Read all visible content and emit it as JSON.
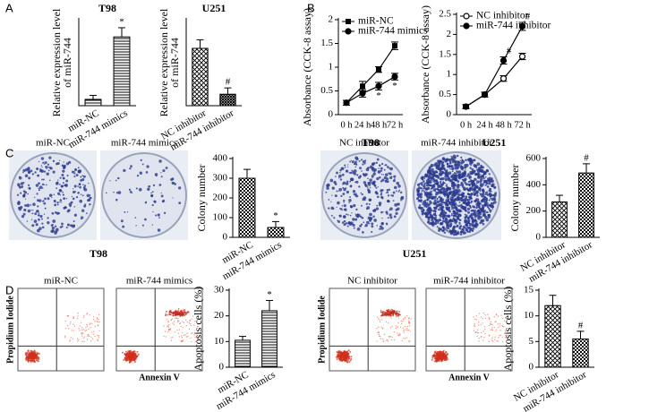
{
  "figure": {
    "panels": [
      "A",
      "B",
      "C",
      "D"
    ],
    "colony": [
      {
        "cell_line": "T98",
        "labels": [
          "miR-NC",
          "miR-744 mimics"
        ]
      },
      {
        "cell_line": "U251",
        "labels": [
          "NC inhibitor",
          "miR-744 inhibitor"
        ]
      }
    ],
    "flow": {
      "labels": [
        [
          "miR-NC",
          "miR-744 mimics"
        ],
        [
          "NC inhibitor",
          "miR-744 inhibitor"
        ]
      ],
      "ylabel": "Propidium Iodide",
      "xlabel": "Annexin V"
    }
  },
  "chart_data": [
    {
      "type": "bar",
      "title": "T98",
      "ylabel": [
        "Relative expression level",
        "of miR-744"
      ],
      "categories": [
        "miR-NC",
        "miR-744 mimics"
      ],
      "values": [
        1.1,
        12
      ],
      "errors": [
        0.7,
        1.6
      ],
      "patterns": [
        "hlines",
        "hlines"
      ],
      "ylim": [
        0,
        15
      ],
      "annotations": [
        {
          "category": "miR-744 mimics",
          "text": "*"
        }
      ]
    },
    {
      "type": "bar",
      "title": "U251",
      "ylabel": [
        "Relative expression level",
        "of miR-744"
      ],
      "categories": [
        "NC inhibitor",
        "miR-744 inhibitor"
      ],
      "values": [
        10,
        2
      ],
      "errors": [
        1.5,
        1.1
      ],
      "patterns": [
        "crosshatch",
        "dense"
      ],
      "ylim": [
        0,
        15
      ],
      "annotations": [
        {
          "category": "miR-744 inhibitor",
          "text": "#"
        }
      ]
    },
    {
      "type": "line",
      "title": "T98",
      "ylabel": [
        "Absorbance (CCK-8 assay)"
      ],
      "categories": [
        "0 h",
        "24 h",
        "48 h",
        "72 h"
      ],
      "ylim": [
        0,
        2
      ],
      "yticks": [
        0,
        0.5,
        1,
        1.5,
        2
      ],
      "series": [
        {
          "name": "miR-NC",
          "color": "#000000",
          "marker": "square",
          "values": [
            0.25,
            0.6,
            0.95,
            1.45
          ],
          "errors": [
            0.05,
            0.1,
            0.06,
            0.08
          ]
        },
        {
          "name": "miR-744 mimics",
          "color": "#000000",
          "marker": "circle",
          "values": [
            0.25,
            0.45,
            0.6,
            0.8
          ],
          "errors": [
            0.05,
            0.08,
            0.08,
            0.07
          ]
        }
      ],
      "annotations": [
        {
          "series": "miR-744 mimics",
          "category": "48 h",
          "text": "*",
          "position": "below"
        },
        {
          "series": "miR-744 mimics",
          "category": "72 h",
          "text": "*",
          "position": "below"
        }
      ]
    },
    {
      "type": "line",
      "title": "U251",
      "ylabel": [
        "Absorbance (CCK-8 assay)"
      ],
      "categories": [
        "0 h",
        "24 h",
        "48 h",
        "72 h"
      ],
      "ylim": [
        0,
        2.5
      ],
      "yticks": [
        0,
        0.5,
        1,
        1.5,
        2,
        2.5
      ],
      "series": [
        {
          "name": "NC inhibitor",
          "color": "#000000",
          "marker": "circle-open",
          "values": [
            0.2,
            0.5,
            0.9,
            1.45
          ],
          "errors": [
            0.05,
            0.06,
            0.07,
            0.08
          ]
        },
        {
          "name": "miR-744 inhibitor",
          "color": "#000000",
          "marker": "circle",
          "values": [
            0.2,
            0.5,
            1.35,
            2.2
          ],
          "errors": [
            0.05,
            0.06,
            0.09,
            0.1
          ]
        }
      ],
      "annotations": [
        {
          "series": "miR-744 inhibitor",
          "category": "48 h",
          "text": "#",
          "position": "above"
        },
        {
          "series": "miR-744 inhibitor",
          "category": "72 h",
          "text": "#",
          "position": "above"
        }
      ]
    },
    {
      "type": "bar",
      "ylabel": [
        "Colony number"
      ],
      "categories": [
        "miR-NC",
        "miR-744 mimics"
      ],
      "values": [
        300,
        50
      ],
      "errors": [
        45,
        30
      ],
      "patterns": [
        "checker",
        "checker"
      ],
      "ylim": [
        0,
        400
      ],
      "yticks": [
        0,
        100,
        200,
        300,
        400
      ],
      "annotations": [
        {
          "category": "miR-744 mimics",
          "text": "*"
        }
      ]
    },
    {
      "type": "bar",
      "ylabel": [
        "Colony number"
      ],
      "categories": [
        "NC inhibitor",
        "miR-744 inhibitor"
      ],
      "values": [
        270,
        490
      ],
      "errors": [
        50,
        70
      ],
      "patterns": [
        "crosshatch",
        "checker"
      ],
      "ylim": [
        0,
        600
      ],
      "yticks": [
        0,
        200,
        400,
        600
      ],
      "annotations": [
        {
          "category": "miR-744 inhibitor",
          "text": "#"
        }
      ]
    },
    {
      "type": "bar",
      "ylabel": [
        "Apoptosis cells (%)"
      ],
      "categories": [
        "miR-NC",
        "miR-744 mimics"
      ],
      "values": [
        10.5,
        22
      ],
      "errors": [
        1.5,
        4
      ],
      "patterns": [
        "hlines",
        "hlines"
      ],
      "ylim": [
        0,
        30
      ],
      "yticks": [
        0,
        10,
        20,
        30
      ],
      "annotations": [
        {
          "category": "miR-744 mimics",
          "text": "*"
        }
      ]
    },
    {
      "type": "bar",
      "ylabel": [
        "Apoptosis cells (%)"
      ],
      "categories": [
        "NC inhibitor",
        "miR-744 inhibitor"
      ],
      "values": [
        12,
        5.5
      ],
      "errors": [
        2,
        1.5
      ],
      "patterns": [
        "crosshatch",
        "checker"
      ],
      "ylim": [
        0,
        15
      ],
      "yticks": [
        0,
        5,
        10,
        15
      ],
      "annotations": [
        {
          "category": "miR-744 inhibitor",
          "text": "#"
        }
      ]
    }
  ]
}
